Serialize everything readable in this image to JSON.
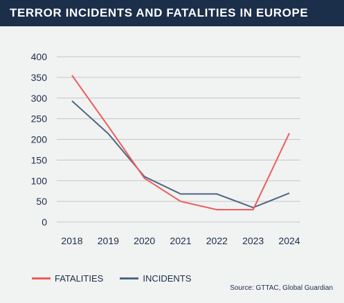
{
  "header": {
    "title": "TERROR INCIDENTS AND FATALITIES IN EUROPE"
  },
  "chart_data": {
    "type": "line",
    "title": "TERROR INCIDENTS AND FATALITIES IN EUROPE",
    "xlabel": "",
    "ylabel": "",
    "x": [
      "2018",
      "2019",
      "2020",
      "2021",
      "2022",
      "2023",
      "2024"
    ],
    "y_ticks": [
      "0",
      "50",
      "100",
      "150",
      "200",
      "250",
      "300",
      "350",
      "400"
    ],
    "ylim": [
      0,
      400
    ],
    "grid": "horizontal",
    "legend_position": "bottom-left",
    "series": [
      {
        "name": "FATALITIES",
        "color": "#f05a5a",
        "values": [
          355,
          232,
          106,
          50,
          30,
          30,
          215
        ]
      },
      {
        "name": "INCIDENTS",
        "color": "#4d6685",
        "values": [
          293,
          214,
          110,
          68,
          68,
          35,
          70
        ]
      }
    ]
  },
  "colors": {
    "header_bg": "#1b2e4a",
    "background": "#f1f2f2",
    "grid": "#c4c6c8",
    "text": "#1b2e4a"
  },
  "source": "Source: GTTAC, Global Guardian"
}
